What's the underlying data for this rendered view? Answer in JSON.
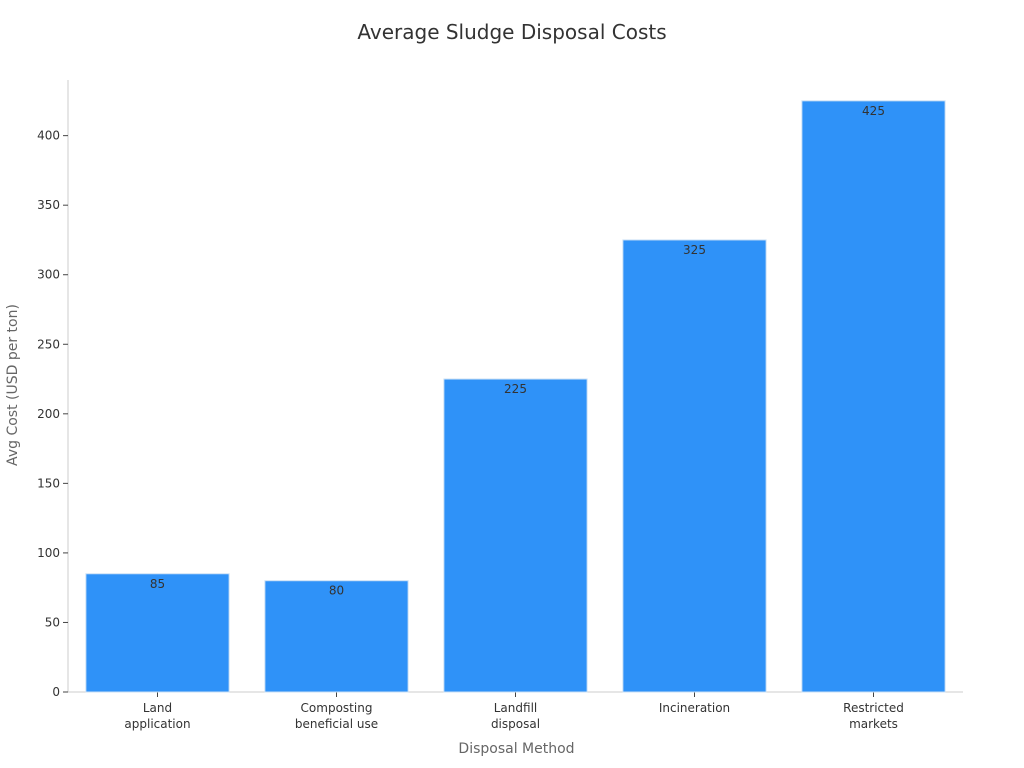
{
  "chart_data": {
    "type": "bar",
    "title": "Average Sludge Disposal Costs",
    "xlabel": "Disposal Method",
    "ylabel": "Avg Cost (USD per ton)",
    "categories": [
      [
        "Land",
        "application"
      ],
      [
        "Composting",
        "beneficial use"
      ],
      [
        "Landfill",
        "disposal"
      ],
      [
        "Incineration"
      ],
      [
        "Restricted",
        "markets"
      ]
    ],
    "values": [
      85,
      80,
      225,
      325,
      425
    ],
    "data_labels": [
      "85",
      "80",
      "225",
      "325",
      "425"
    ],
    "ylim": [
      0,
      440
    ],
    "yticks": [
      0,
      50,
      100,
      150,
      200,
      250,
      300,
      350,
      400
    ],
    "grid": false,
    "legend": "none",
    "colors": {
      "bar": "#2f92f8",
      "bar_edge": "#c9dff5",
      "axis": "#cccccc",
      "text": "#333333",
      "label_text": "#666666"
    }
  }
}
